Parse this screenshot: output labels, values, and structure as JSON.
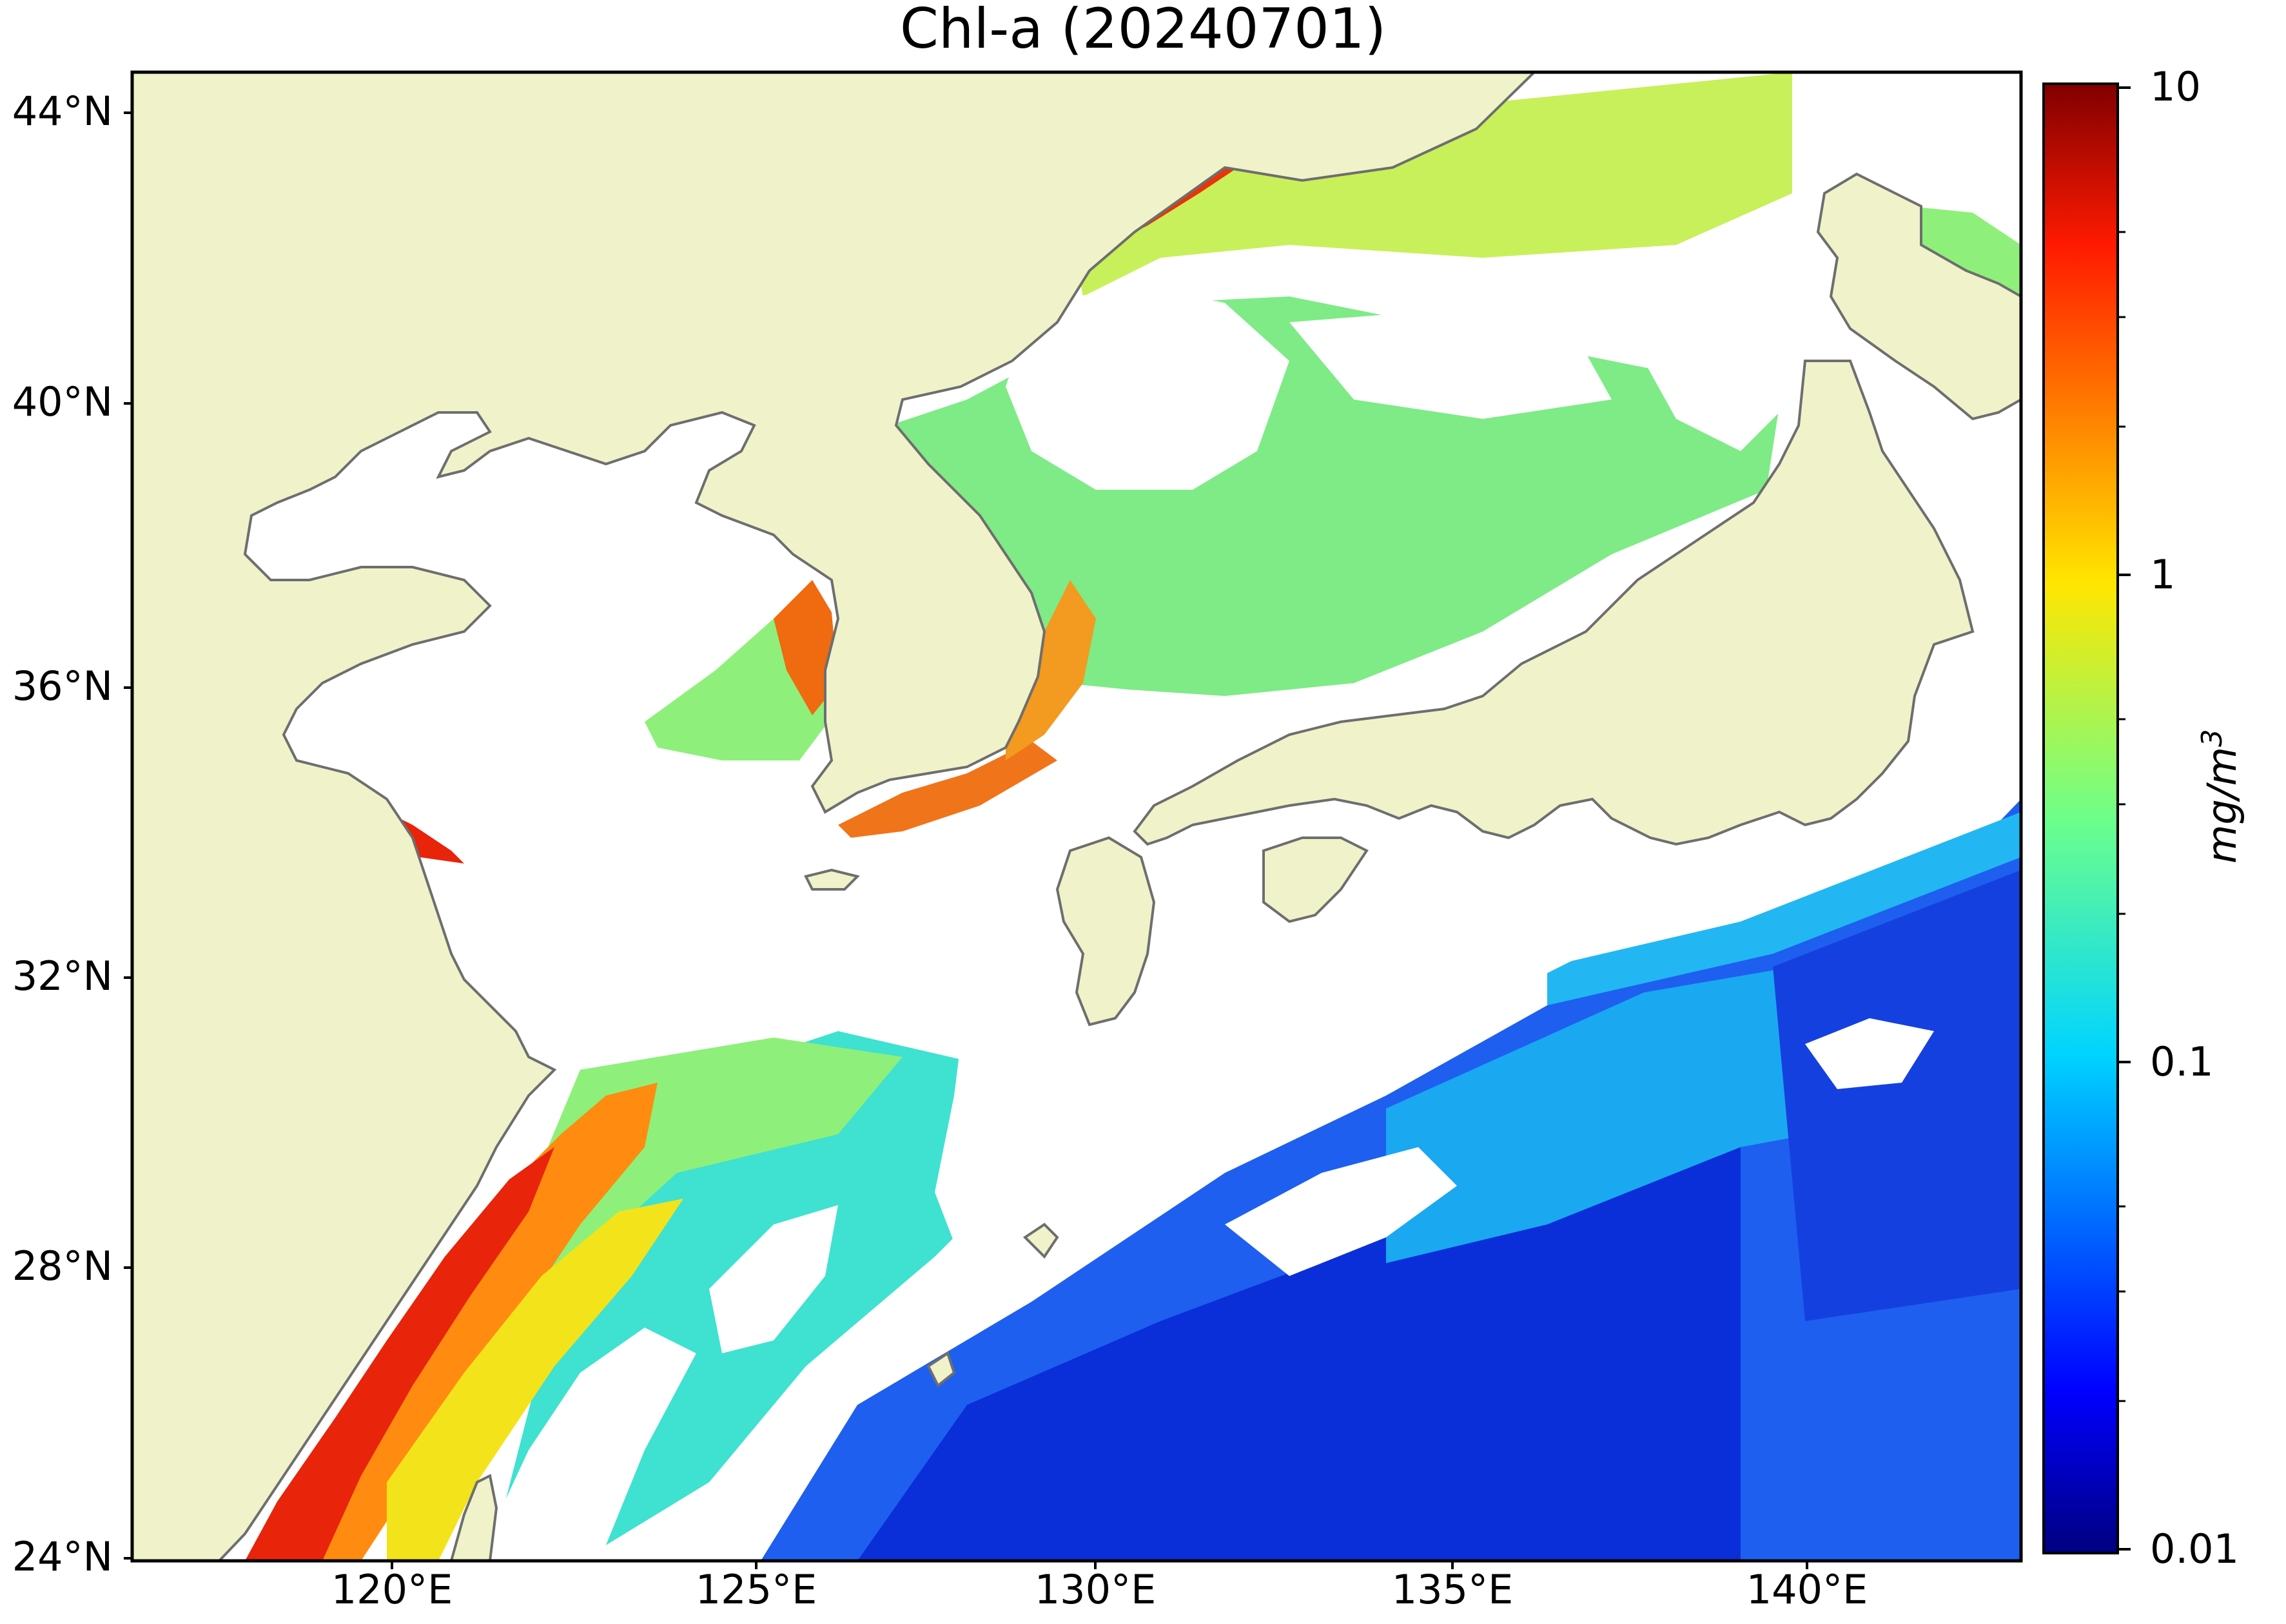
{
  "title": "Chl-a (20240701)",
  "map": {
    "lat_ticks": [
      "44°N",
      "40°N",
      "36°N",
      "32°N",
      "28°N",
      "24°N"
    ],
    "lon_ticks": [
      "120°E",
      "125°E",
      "130°E",
      "135°E",
      "140°E"
    ],
    "land_color": "#f0f2c9",
    "coastline_color": "#6e6e6e",
    "nodata_color": "#ffffff"
  },
  "colorbar": {
    "ticks": [
      "10",
      "1",
      "0.1",
      "0.01"
    ],
    "unit": "mg/m3",
    "colormap": "jet",
    "scale": "log"
  }
}
